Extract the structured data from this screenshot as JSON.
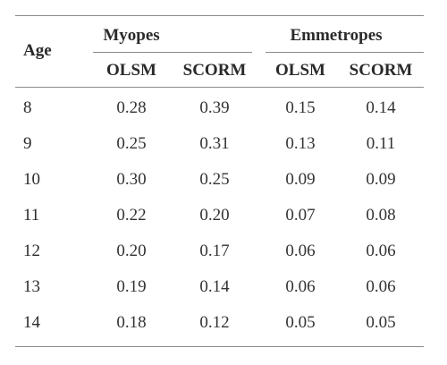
{
  "table": {
    "age_header": "Age",
    "groups": [
      "Myopes",
      "Emmetropes"
    ],
    "subheaders": [
      "OLSM",
      "SCORM",
      "OLSM",
      "SCORM"
    ],
    "rows": [
      {
        "age": "8",
        "values": [
          "0.28",
          "0.39",
          "0.15",
          "0.14"
        ]
      },
      {
        "age": "9",
        "values": [
          "0.25",
          "0.31",
          "0.13",
          "0.11"
        ]
      },
      {
        "age": "10",
        "values": [
          "0.30",
          "0.25",
          "0.09",
          "0.09"
        ]
      },
      {
        "age": "11",
        "values": [
          "0.22",
          "0.20",
          "0.07",
          "0.08"
        ]
      },
      {
        "age": "12",
        "values": [
          "0.20",
          "0.17",
          "0.06",
          "0.06"
        ]
      },
      {
        "age": "13",
        "values": [
          "0.19",
          "0.14",
          "0.06",
          "0.06"
        ]
      },
      {
        "age": "14",
        "values": [
          "0.18",
          "0.12",
          "0.05",
          "0.05"
        ]
      }
    ]
  }
}
